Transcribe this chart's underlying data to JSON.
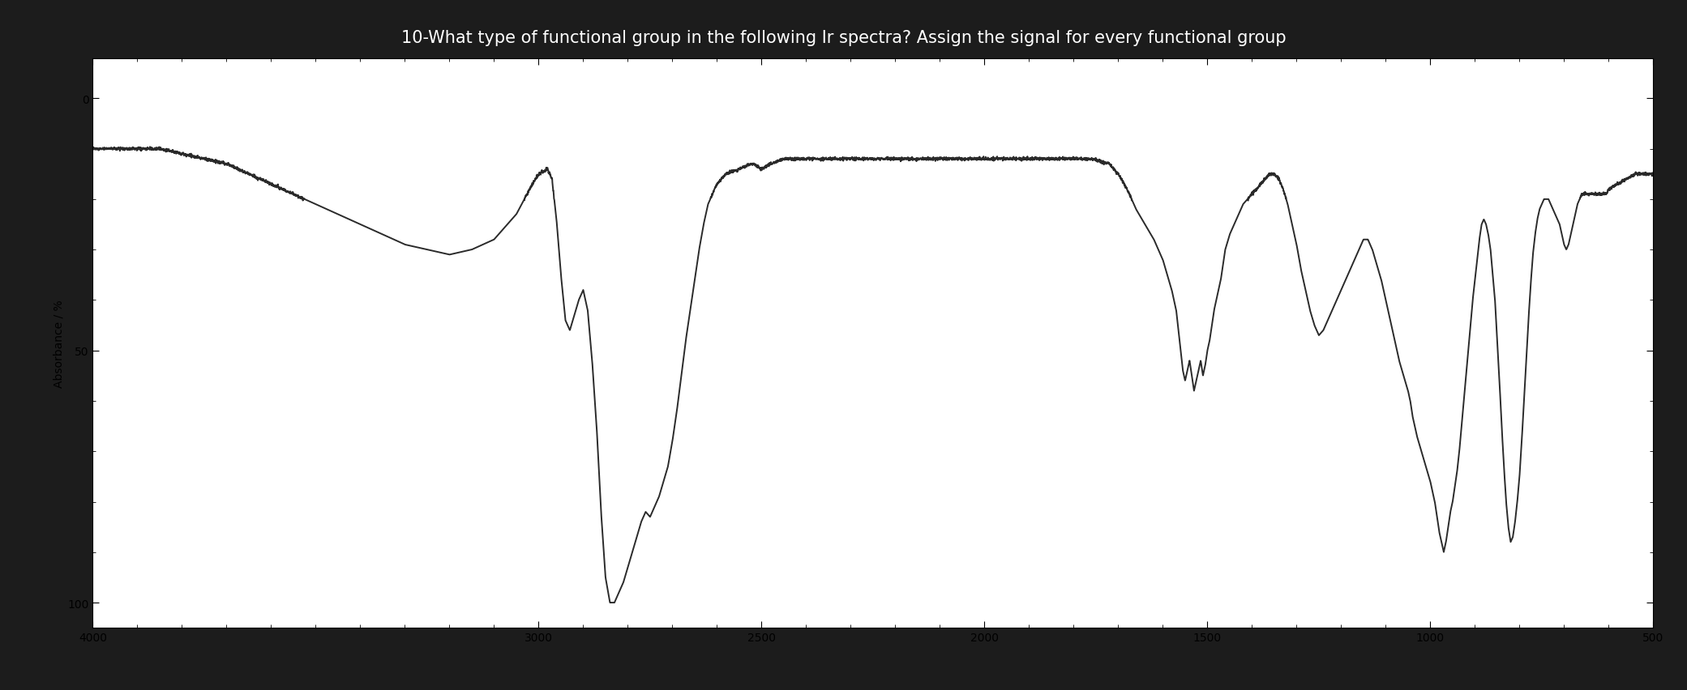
{
  "title": "10-What type of functional group in the following Ir spectra? Assign the signal for every functional group",
  "ylabel": "Absorbance / %",
  "ytick_vals": [
    0,
    50,
    100
  ],
  "ytick_labels": [
    "0",
    "50",
    "100"
  ],
  "xlim": [
    4000,
    500
  ],
  "ylim": [
    105,
    -8
  ],
  "xtick_vals": [
    4000,
    3000,
    2500,
    2000,
    1500,
    1000,
    500
  ],
  "xtick_labels": [
    "4000",
    "3000",
    "2500",
    "2000",
    "1500",
    "1000",
    "500"
  ],
  "bg_outer": "#1c1c1c",
  "bg_inner": "#ffffff",
  "line_color": "#2a2a2a",
  "title_color": "#ffffff",
  "title_fontsize": 15,
  "ylabel_fontsize": 10,
  "tick_fontsize": 10,
  "line_width": 1.4,
  "control_points": [
    [
      4000,
      10
    ],
    [
      3950,
      10
    ],
    [
      3900,
      10
    ],
    [
      3850,
      10
    ],
    [
      3800,
      11
    ],
    [
      3750,
      12
    ],
    [
      3700,
      13
    ],
    [
      3650,
      15
    ],
    [
      3600,
      17
    ],
    [
      3550,
      19
    ],
    [
      3500,
      21
    ],
    [
      3450,
      23
    ],
    [
      3400,
      25
    ],
    [
      3350,
      27
    ],
    [
      3300,
      29
    ],
    [
      3250,
      30
    ],
    [
      3200,
      31
    ],
    [
      3150,
      30
    ],
    [
      3100,
      28
    ],
    [
      3050,
      23
    ],
    [
      3020,
      18
    ],
    [
      3000,
      15
    ],
    [
      2980,
      14
    ],
    [
      2970,
      16
    ],
    [
      2960,
      24
    ],
    [
      2950,
      35
    ],
    [
      2940,
      44
    ],
    [
      2930,
      46
    ],
    [
      2920,
      43
    ],
    [
      2910,
      40
    ],
    [
      2900,
      38
    ],
    [
      2890,
      42
    ],
    [
      2880,
      52
    ],
    [
      2870,
      65
    ],
    [
      2860,
      82
    ],
    [
      2850,
      95
    ],
    [
      2840,
      100
    ],
    [
      2830,
      100
    ],
    [
      2820,
      98
    ],
    [
      2810,
      96
    ],
    [
      2800,
      93
    ],
    [
      2790,
      90
    ],
    [
      2780,
      87
    ],
    [
      2770,
      84
    ],
    [
      2760,
      82
    ],
    [
      2750,
      83
    ],
    [
      2740,
      81
    ],
    [
      2730,
      79
    ],
    [
      2720,
      76
    ],
    [
      2710,
      73
    ],
    [
      2700,
      68
    ],
    [
      2690,
      62
    ],
    [
      2680,
      55
    ],
    [
      2670,
      48
    ],
    [
      2660,
      42
    ],
    [
      2650,
      36
    ],
    [
      2640,
      30
    ],
    [
      2630,
      25
    ],
    [
      2620,
      21
    ],
    [
      2600,
      17
    ],
    [
      2580,
      15
    ],
    [
      2550,
      14
    ],
    [
      2520,
      13
    ],
    [
      2500,
      14
    ],
    [
      2480,
      13
    ],
    [
      2450,
      12
    ],
    [
      2400,
      12
    ],
    [
      2350,
      12
    ],
    [
      2300,
      12
    ],
    [
      2250,
      12
    ],
    [
      2200,
      12
    ],
    [
      2150,
      12
    ],
    [
      2100,
      12
    ],
    [
      2050,
      12
    ],
    [
      2000,
      12
    ],
    [
      1960,
      12
    ],
    [
      1920,
      12
    ],
    [
      1880,
      12
    ],
    [
      1840,
      12
    ],
    [
      1800,
      12
    ],
    [
      1760,
      12
    ],
    [
      1720,
      13
    ],
    [
      1700,
      15
    ],
    [
      1680,
      18
    ],
    [
      1660,
      22
    ],
    [
      1640,
      25
    ],
    [
      1620,
      28
    ],
    [
      1610,
      30
    ],
    [
      1600,
      32
    ],
    [
      1590,
      35
    ],
    [
      1580,
      38
    ],
    [
      1570,
      42
    ],
    [
      1565,
      46
    ],
    [
      1560,
      50
    ],
    [
      1555,
      54
    ],
    [
      1550,
      56
    ],
    [
      1545,
      54
    ],
    [
      1540,
      52
    ],
    [
      1535,
      55
    ],
    [
      1530,
      58
    ],
    [
      1525,
      56
    ],
    [
      1520,
      54
    ],
    [
      1515,
      52
    ],
    [
      1510,
      55
    ],
    [
      1505,
      53
    ],
    [
      1500,
      50
    ],
    [
      1495,
      48
    ],
    [
      1490,
      45
    ],
    [
      1485,
      42
    ],
    [
      1480,
      40
    ],
    [
      1475,
      38
    ],
    [
      1470,
      36
    ],
    [
      1465,
      33
    ],
    [
      1460,
      30
    ],
    [
      1450,
      27
    ],
    [
      1440,
      25
    ],
    [
      1430,
      23
    ],
    [
      1420,
      21
    ],
    [
      1410,
      20
    ],
    [
      1400,
      19
    ],
    [
      1390,
      18
    ],
    [
      1380,
      17
    ],
    [
      1370,
      16
    ],
    [
      1360,
      15
    ],
    [
      1350,
      15
    ],
    [
      1340,
      16
    ],
    [
      1330,
      18
    ],
    [
      1320,
      21
    ],
    [
      1310,
      25
    ],
    [
      1300,
      29
    ],
    [
      1290,
      34
    ],
    [
      1280,
      38
    ],
    [
      1270,
      42
    ],
    [
      1260,
      45
    ],
    [
      1250,
      47
    ],
    [
      1240,
      46
    ],
    [
      1230,
      44
    ],
    [
      1220,
      42
    ],
    [
      1210,
      40
    ],
    [
      1200,
      38
    ],
    [
      1190,
      36
    ],
    [
      1180,
      34
    ],
    [
      1170,
      32
    ],
    [
      1160,
      30
    ],
    [
      1150,
      28
    ],
    [
      1140,
      28
    ],
    [
      1130,
      30
    ],
    [
      1120,
      33
    ],
    [
      1110,
      36
    ],
    [
      1100,
      40
    ],
    [
      1090,
      44
    ],
    [
      1080,
      48
    ],
    [
      1070,
      52
    ],
    [
      1060,
      55
    ],
    [
      1050,
      58
    ],
    [
      1045,
      60
    ],
    [
      1040,
      63
    ],
    [
      1030,
      67
    ],
    [
      1020,
      70
    ],
    [
      1010,
      73
    ],
    [
      1000,
      76
    ],
    [
      995,
      78
    ],
    [
      990,
      80
    ],
    [
      985,
      83
    ],
    [
      980,
      86
    ],
    [
      975,
      88
    ],
    [
      970,
      90
    ],
    [
      965,
      88
    ],
    [
      960,
      85
    ],
    [
      955,
      82
    ],
    [
      950,
      80
    ],
    [
      945,
      77
    ],
    [
      940,
      74
    ],
    [
      935,
      70
    ],
    [
      930,
      65
    ],
    [
      925,
      60
    ],
    [
      920,
      55
    ],
    [
      915,
      50
    ],
    [
      910,
      45
    ],
    [
      905,
      40
    ],
    [
      900,
      36
    ],
    [
      895,
      32
    ],
    [
      890,
      28
    ],
    [
      885,
      25
    ],
    [
      880,
      24
    ],
    [
      875,
      25
    ],
    [
      870,
      27
    ],
    [
      865,
      30
    ],
    [
      860,
      35
    ],
    [
      855,
      40
    ],
    [
      850,
      48
    ],
    [
      845,
      56
    ],
    [
      840,
      65
    ],
    [
      835,
      73
    ],
    [
      830,
      80
    ],
    [
      825,
      85
    ],
    [
      820,
      88
    ],
    [
      815,
      87
    ],
    [
      810,
      84
    ],
    [
      805,
      80
    ],
    [
      800,
      75
    ],
    [
      795,
      68
    ],
    [
      790,
      60
    ],
    [
      785,
      52
    ],
    [
      780,
      44
    ],
    [
      775,
      37
    ],
    [
      770,
      31
    ],
    [
      765,
      27
    ],
    [
      760,
      24
    ],
    [
      755,
      22
    ],
    [
      750,
      21
    ],
    [
      745,
      20
    ],
    [
      740,
      20
    ],
    [
      735,
      20
    ],
    [
      730,
      21
    ],
    [
      725,
      22
    ],
    [
      720,
      23
    ],
    [
      715,
      24
    ],
    [
      710,
      25
    ],
    [
      705,
      27
    ],
    [
      700,
      29
    ],
    [
      695,
      30
    ],
    [
      690,
      29
    ],
    [
      685,
      27
    ],
    [
      680,
      25
    ],
    [
      675,
      23
    ],
    [
      670,
      21
    ],
    [
      665,
      20
    ],
    [
      660,
      19
    ],
    [
      655,
      19
    ],
    [
      650,
      19
    ],
    [
      645,
      19
    ],
    [
      640,
      19
    ],
    [
      635,
      19
    ],
    [
      630,
      19
    ],
    [
      625,
      19
    ],
    [
      620,
      19
    ],
    [
      615,
      19
    ],
    [
      610,
      19
    ],
    [
      605,
      19
    ],
    [
      600,
      18
    ],
    [
      580,
      17
    ],
    [
      560,
      16
    ],
    [
      540,
      15
    ],
    [
      520,
      15
    ],
    [
      500,
      15
    ]
  ]
}
